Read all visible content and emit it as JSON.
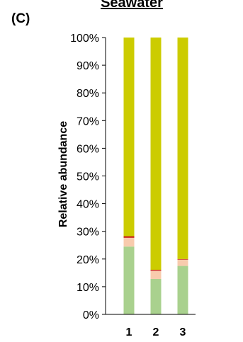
{
  "panel_label": "(C)",
  "chart_data": {
    "type": "bar",
    "stacked": true,
    "title": "Seawater",
    "xlabel": "",
    "ylabel": "Relative abundance",
    "categories": [
      "1",
      "2",
      "3"
    ],
    "ylim": [
      0,
      100
    ],
    "yticks": [
      "0%",
      "10%",
      "20%",
      "30%",
      "40%",
      "50%",
      "60%",
      "70%",
      "80%",
      "90%",
      "100%"
    ],
    "grid": false,
    "series": [
      {
        "color": "#a9d18e",
        "values": [
          24.5,
          12.8,
          17.5
        ]
      },
      {
        "color": "#f8cbad",
        "values": [
          3.2,
          3.0,
          2.3
        ]
      },
      {
        "color": "#c00000",
        "values": [
          0.5,
          0.3,
          0.2
        ]
      },
      {
        "color": "#cccc00",
        "values": [
          71.8,
          83.9,
          80.0
        ]
      }
    ]
  }
}
